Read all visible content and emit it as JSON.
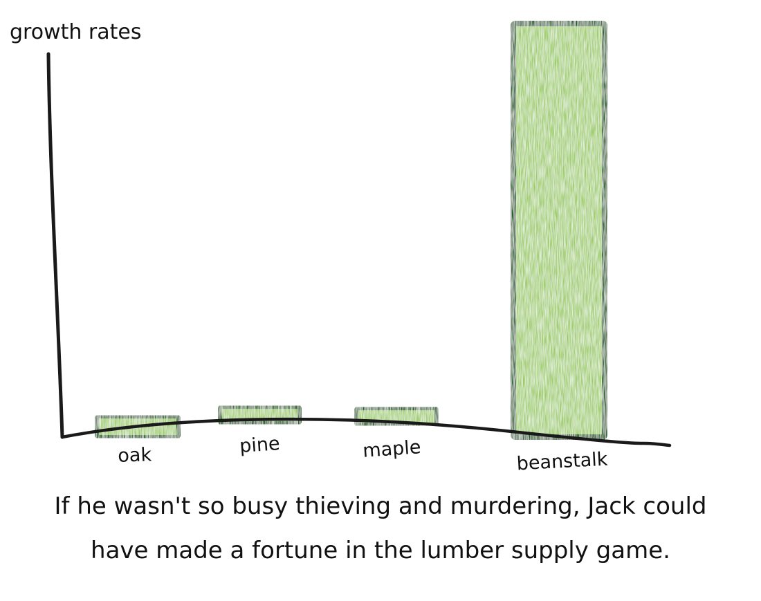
{
  "chart_data": {
    "type": "bar",
    "categories": [
      "oak",
      "pine",
      "maple",
      "beanstalk"
    ],
    "values": [
      5,
      4,
      4,
      100
    ],
    "title": "",
    "xlabel": "",
    "ylabel": "growth rates",
    "ylim": [
      0,
      100
    ],
    "grid": false,
    "legend": "none",
    "bar_fill": "#9ccc65",
    "bar_stroke": "#1b5e20",
    "axis_color": "#1a1a1a"
  },
  "caption": {
    "line1": "If he wasn't so busy thieving and murdering, Jack could",
    "line2": "have made a fortune in the lumber supply game."
  }
}
